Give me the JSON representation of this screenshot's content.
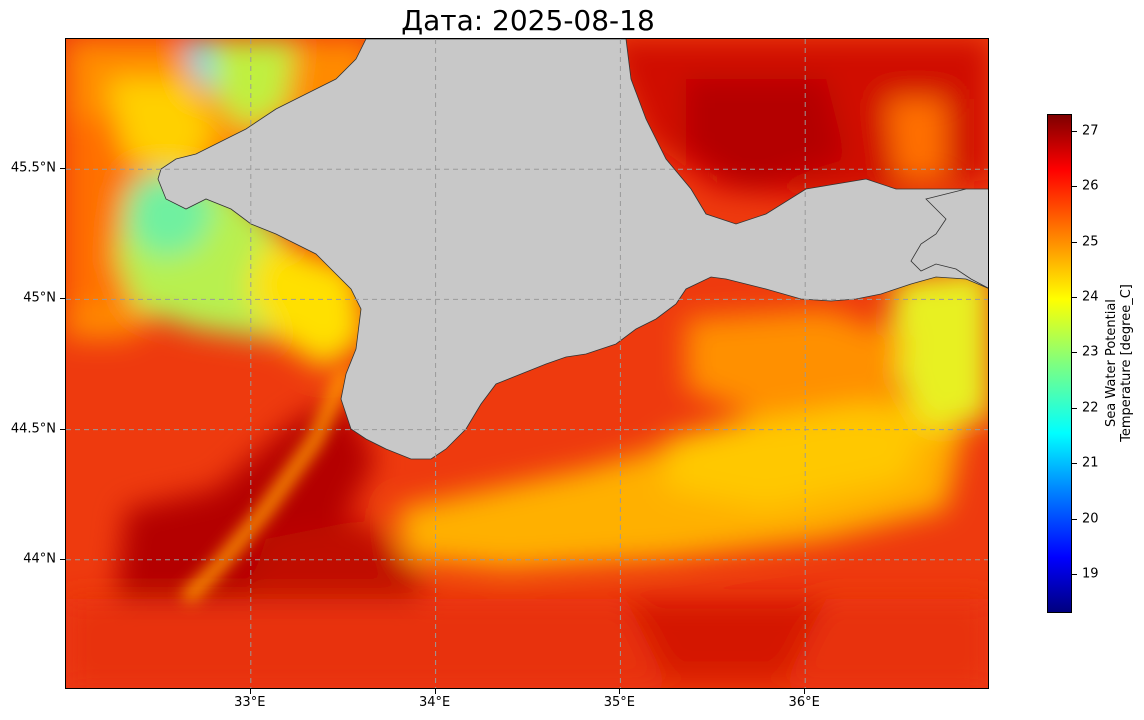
{
  "title": "Дата: 2025-08-18",
  "colorbar": {
    "label_line1": "Sea Water Potential",
    "label_line2": "Temperature [degree_C]",
    "ticks": [
      "27",
      "26",
      "25",
      "24",
      "23",
      "22",
      "21",
      "20",
      "19"
    ],
    "range": [
      18.3,
      27.3
    ],
    "colormap": "jet"
  },
  "axes": {
    "lon_labels": [
      "33°E",
      "34°E",
      "35°E",
      "36°E"
    ],
    "lat_labels": [
      "45.5°N",
      "45°N",
      "44.5°N",
      "44°N"
    ],
    "lon_range": [
      32.0,
      37.0
    ],
    "lat_range": [
      43.5,
      46.0
    ],
    "grid": true
  },
  "colors": {
    "land": "#c8c8c8",
    "ocean_base": "#f03c10",
    "gridline": "#9a9a9a"
  }
}
